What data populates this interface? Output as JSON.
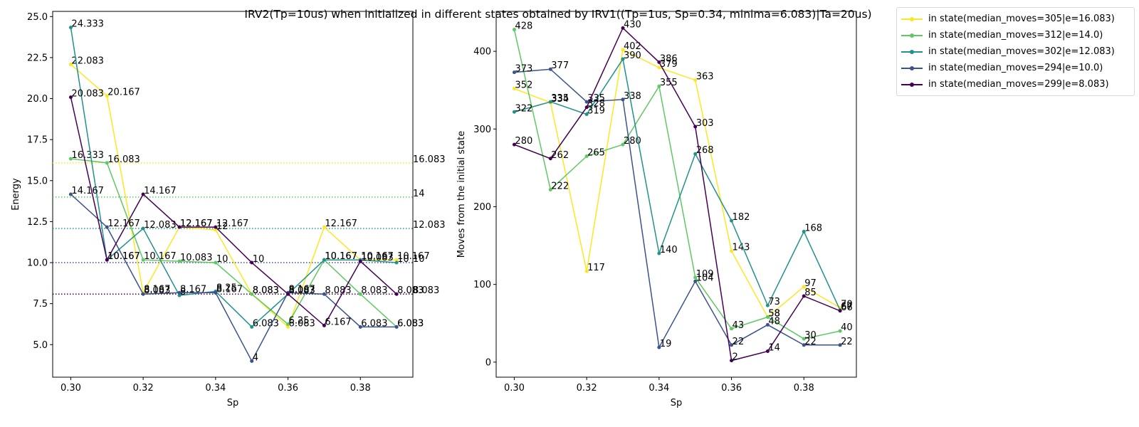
{
  "chart_data": {
    "type": "line",
    "title": "IRV2(Tp=10us) when initialized in different states obtained by IRV1((Tp=1us, Sp=0.34, minima=6.083)|Ta=20us)",
    "x": [
      0.3,
      0.31,
      0.32,
      0.33,
      0.34,
      0.35,
      0.36,
      0.37,
      0.38,
      0.39
    ],
    "series": [
      {
        "name": "in state(median_moves=305|e=16.083)",
        "color": "#fde725",
        "reference_energy": 16.083,
        "energy": [
          22.083,
          20.167,
          8.167,
          12.167,
          12.0,
          8.083,
          6.083,
          12.167,
          10.167,
          10.167
        ],
        "moves": [
          352,
          334,
          117,
          402,
          379,
          363,
          143,
          58,
          97,
          70
        ]
      },
      {
        "name": "in state(median_moves=312|e=14.0)",
        "color": "#5ec962",
        "reference_energy": 14.0,
        "energy": [
          16.333,
          16.083,
          10.167,
          10.083,
          10.0,
          8.083,
          6.25,
          10.167,
          8.083,
          6.083
        ],
        "moves": [
          428,
          222,
          265,
          280,
          355,
          109,
          43,
          58,
          30,
          40
        ]
      },
      {
        "name": "in state(median_moves=302|e=12.083)",
        "color": "#21918c",
        "reference_energy": 12.083,
        "energy": [
          24.333,
          10.167,
          12.083,
          8.0,
          8.25,
          6.083,
          8.083,
          10.167,
          10.167,
          10.0
        ],
        "moves": [
          322,
          335,
          319,
          390,
          140,
          268,
          182,
          73,
          168,
          67
        ]
      },
      {
        "name": "in state(median_moves=294|e=10.0)",
        "color": "#3b528b",
        "reference_energy": 10.0,
        "energy": [
          14.167,
          12.167,
          8.083,
          8.167,
          8.167,
          4.0,
          8.167,
          8.083,
          6.083,
          6.083
        ],
        "moves": [
          373,
          377,
          335,
          338,
          19,
          104,
          22,
          48,
          22,
          22
        ]
      },
      {
        "name": "in state(median_moves=299|e=8.083)",
        "color": "#440154",
        "reference_energy": 8.083,
        "energy": [
          20.083,
          10.167,
          14.167,
          12.167,
          12.167,
          10.0,
          8.083,
          6.167,
          10.083,
          8.083
        ],
        "moves": [
          280,
          262,
          328,
          430,
          386,
          303,
          2,
          14,
          85,
          66
        ]
      }
    ],
    "subplots": [
      {
        "key": "energy",
        "xlabel": "Sp",
        "ylabel": "Energy",
        "xlim": [
          0.295,
          0.3945
        ],
        "ylim": [
          3.0166,
          25.3164
        ],
        "xticks": [
          "0.30",
          "0.32",
          "0.34",
          "0.36",
          "0.38"
        ],
        "yticks": [
          "5.0",
          "7.5",
          "10.0",
          "12.5",
          "15.0",
          "17.5",
          "20.0",
          "22.5",
          "25.0"
        ],
        "has_reference_lines": true
      },
      {
        "key": "moves",
        "xlabel": "Sp",
        "ylabel": "Moves from the initial state",
        "xlim": [
          0.295,
          0.3945
        ],
        "ylim": [
          -19.4,
          451.4
        ],
        "xticks": [
          "0.30",
          "0.32",
          "0.34",
          "0.36",
          "0.38"
        ],
        "yticks": [
          "0",
          "100",
          "200",
          "300",
          "400"
        ],
        "has_reference_lines": false
      }
    ],
    "grid": false,
    "legend_position": "outside-right"
  }
}
